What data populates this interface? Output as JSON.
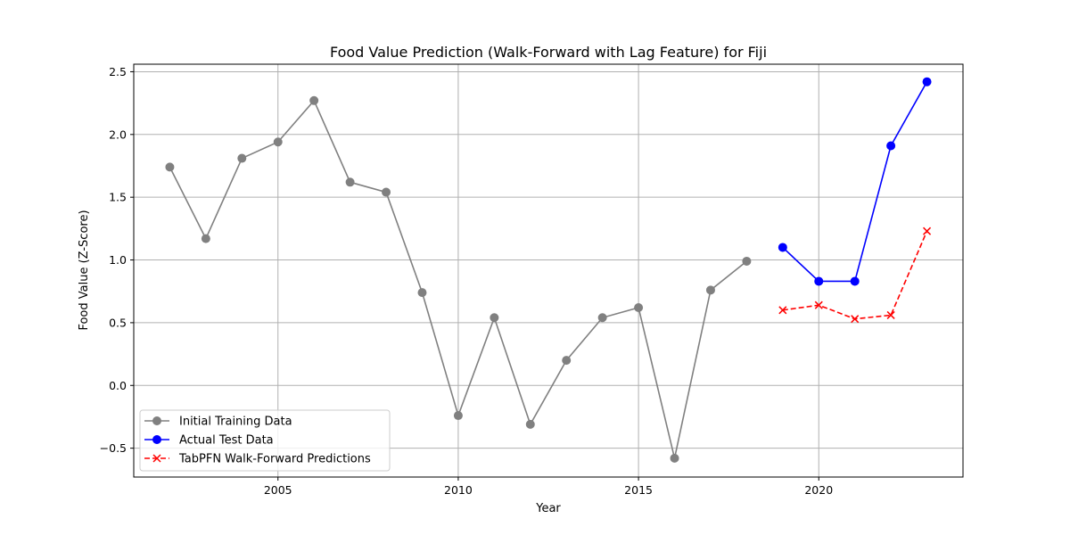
{
  "chart_data": {
    "type": "line",
    "title": "Food Value Prediction (Walk-Forward with Lag Feature) for Fiji",
    "xlabel": "Year",
    "ylabel": "Food Value (Z-Score)",
    "xlim": [
      2001.0,
      2024.0
    ],
    "ylim": [
      -0.73,
      2.56
    ],
    "xticks": [
      2005,
      2010,
      2015,
      2020
    ],
    "yticks": [
      -0.5,
      0.0,
      0.5,
      1.0,
      1.5,
      2.0,
      2.5
    ],
    "ytick_labels": [
      "−0.5",
      "0.0",
      "0.5",
      "1.0",
      "1.5",
      "2.0",
      "2.5"
    ],
    "grid": true,
    "legend_position": "lower-left",
    "series": [
      {
        "name": "Initial Training Data",
        "color": "#808080",
        "line_style": "solid",
        "marker": "circle",
        "x": [
          2002,
          2003,
          2004,
          2005,
          2006,
          2007,
          2008,
          2009,
          2010,
          2011,
          2012,
          2013,
          2014,
          2015,
          2016,
          2017,
          2018
        ],
        "values": [
          1.74,
          1.17,
          1.81,
          1.94,
          2.27,
          1.62,
          1.54,
          0.74,
          -0.24,
          0.54,
          -0.31,
          0.2,
          0.54,
          0.62,
          -0.58,
          0.76,
          0.99
        ]
      },
      {
        "name": "Actual Test Data",
        "color": "#0000ff",
        "line_style": "solid",
        "marker": "circle",
        "x": [
          2019,
          2020,
          2021,
          2022,
          2023
        ],
        "values": [
          1.1,
          0.83,
          0.83,
          1.91,
          2.42
        ]
      },
      {
        "name": "TabPFN Walk-Forward Predictions",
        "color": "#ff0000",
        "line_style": "dashed",
        "marker": "x",
        "x": [
          2019,
          2020,
          2021,
          2022,
          2023
        ],
        "values": [
          0.6,
          0.64,
          0.53,
          0.56,
          1.23
        ]
      }
    ]
  }
}
